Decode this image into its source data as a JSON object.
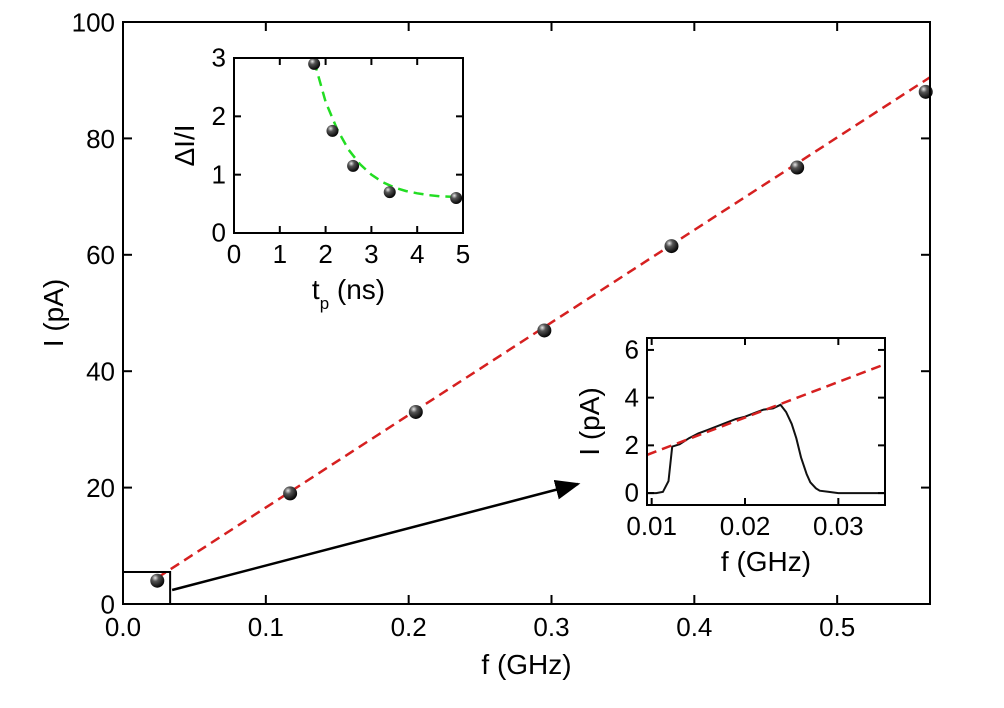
{
  "chart_data": [
    {
      "type": "scatter",
      "role": "main",
      "xlabel": "f (GHz)",
      "ylabel": "I (pA)",
      "xlim": [
        0.0,
        0.565
      ],
      "ylim": [
        0,
        100
      ],
      "xticks": [
        "0.0",
        "0.1",
        "0.2",
        "0.3",
        "0.4",
        "0.5"
      ],
      "xtick_values": [
        0.0,
        0.1,
        0.2,
        0.3,
        0.4,
        0.5
      ],
      "yticks": [
        "0",
        "20",
        "40",
        "60",
        "80",
        "100"
      ],
      "ytick_values": [
        0,
        20,
        40,
        60,
        80,
        100
      ],
      "series": [
        {
          "kind": "points",
          "color": "#111111",
          "x": [
            0.024,
            0.117,
            0.205,
            0.295,
            0.384,
            0.472,
            0.562
          ],
          "y": [
            4,
            19,
            33,
            47,
            61.5,
            75,
            88
          ]
        },
        {
          "kind": "dashed-fit",
          "color": "#d62020",
          "x": [
            0.024,
            0.565
          ],
          "y": [
            4.5,
            90.5
          ]
        }
      ],
      "highlight_box": {
        "x": [
          0.0,
          0.033
        ],
        "y": [
          0,
          5.5
        ]
      },
      "arrow": {
        "color": "#000000"
      }
    },
    {
      "type": "scatter",
      "role": "inset-top-left",
      "xlabel": "t",
      "xlabel_sub": "p",
      "xlabel_suffix": " (ns)",
      "ylabel": "ΔI/I",
      "xlim": [
        0,
        5
      ],
      "ylim": [
        0,
        3
      ],
      "xticks": [
        "0",
        "1",
        "2",
        "3",
        "4",
        "5"
      ],
      "xtick_values": [
        0,
        1,
        2,
        3,
        4,
        5
      ],
      "yticks": [
        "0",
        "1",
        "2",
        "3"
      ],
      "ytick_values": [
        0,
        1,
        2,
        3
      ],
      "series": [
        {
          "kind": "points",
          "color": "#111111",
          "x": [
            1.75,
            2.15,
            2.6,
            3.4,
            4.85
          ],
          "y": [
            2.9,
            1.75,
            1.15,
            0.7,
            0.6
          ]
        },
        {
          "kind": "dashed-fit",
          "color": "#22dd22",
          "x": [
            1.75,
            2.0,
            2.25,
            2.5,
            2.75,
            3.0,
            3.25,
            3.5,
            3.75,
            4.0,
            4.25,
            4.5,
            4.75,
            4.95
          ],
          "y": [
            2.95,
            2.25,
            1.78,
            1.43,
            1.18,
            1.0,
            0.87,
            0.78,
            0.72,
            0.68,
            0.65,
            0.63,
            0.62,
            0.61
          ]
        }
      ]
    },
    {
      "type": "line",
      "role": "inset-bottom-right",
      "xlabel": "f (GHz)",
      "ylabel": "I (pA)",
      "xlim": [
        0.0095,
        0.035
      ],
      "ylim": [
        -0.5,
        6.5
      ],
      "xticks": [
        "0.01",
        "0.02",
        "0.03"
      ],
      "xtick_values": [
        0.01,
        0.02,
        0.03
      ],
      "yticks": [
        "0",
        "2",
        "4",
        "6"
      ],
      "ytick_values": [
        0,
        2,
        4,
        6
      ],
      "series": [
        {
          "kind": "solid-curve",
          "color": "#111111",
          "x": [
            0.0095,
            0.0105,
            0.0112,
            0.0118,
            0.0122,
            0.0126,
            0.013,
            0.014,
            0.015,
            0.016,
            0.017,
            0.018,
            0.019,
            0.02,
            0.021,
            0.022,
            0.023,
            0.0238,
            0.0244,
            0.025,
            0.0255,
            0.026,
            0.0266,
            0.027,
            0.0276,
            0.028,
            0.029,
            0.03,
            0.031,
            0.032,
            0.033,
            0.034,
            0.035
          ],
          "y": [
            0.0,
            0.0,
            0.05,
            0.5,
            1.95,
            2.0,
            2.05,
            2.3,
            2.5,
            2.65,
            2.8,
            2.95,
            3.1,
            3.2,
            3.35,
            3.5,
            3.55,
            3.7,
            3.4,
            2.9,
            2.3,
            1.5,
            0.8,
            0.45,
            0.2,
            0.1,
            0.05,
            0.0,
            0.0,
            0.0,
            0.0,
            0.0,
            0.0
          ]
        },
        {
          "kind": "dashed-fit",
          "color": "#d62020",
          "x": [
            0.0095,
            0.035
          ],
          "y": [
            1.6,
            5.4
          ]
        }
      ]
    }
  ]
}
